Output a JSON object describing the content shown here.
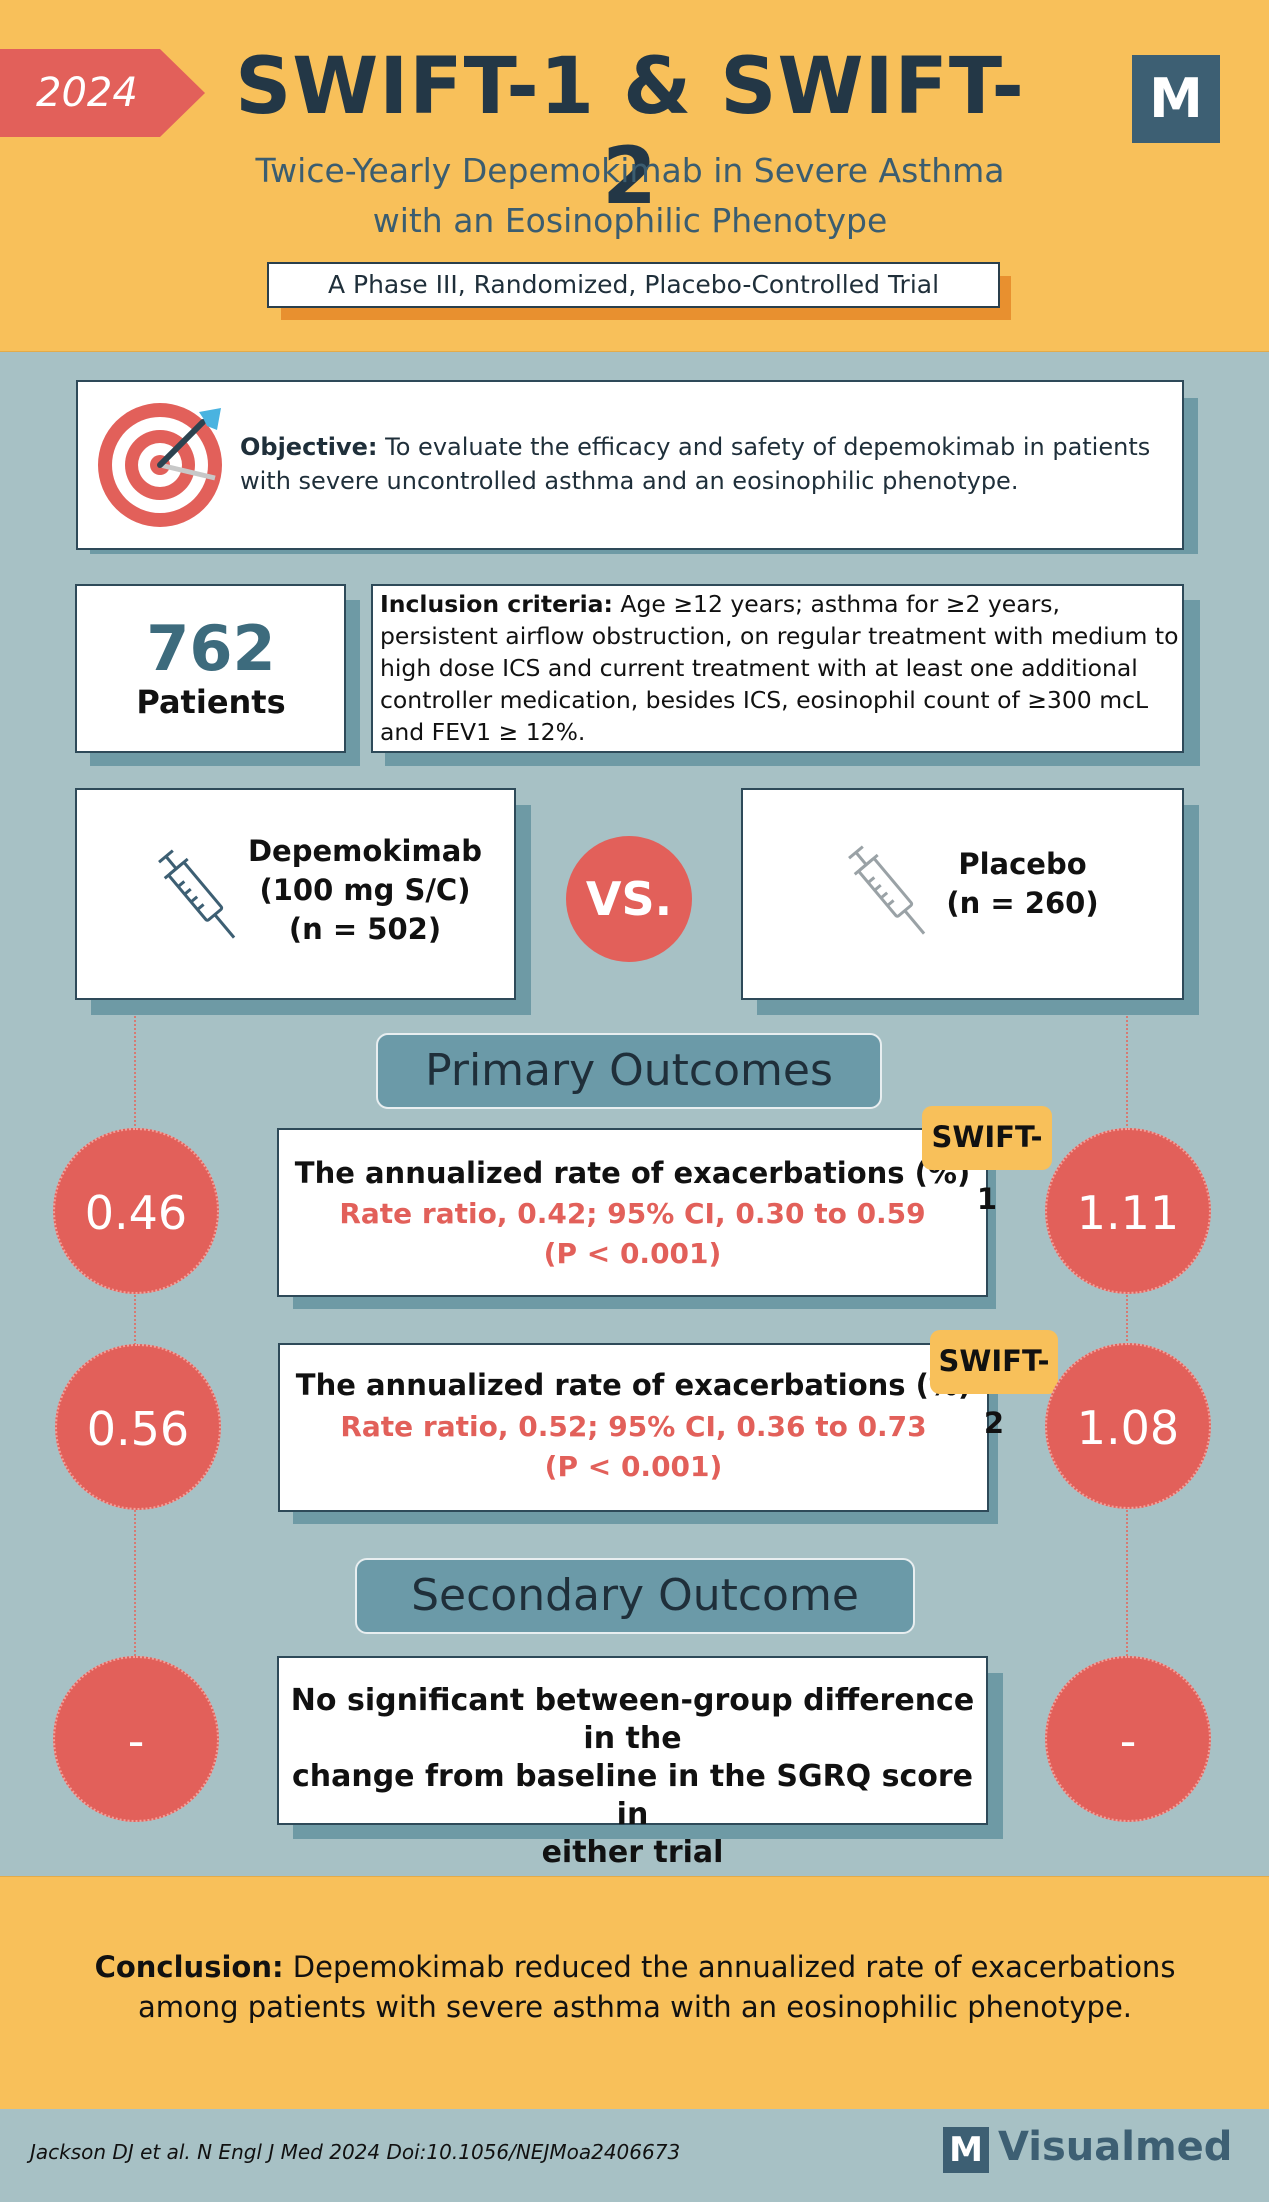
{
  "header": {
    "year": "2024",
    "title": "SWIFT-1 & SWIFT-2",
    "subtitle_line1": "Twice-Yearly Depemokimab in Severe Asthma",
    "subtitle_line2": "with an Eosinophilic Phenotype",
    "trial_type": "A Phase III, Randomized, Placebo-Controlled Trial",
    "logo_letter": "M"
  },
  "objective": {
    "label": "Objective:",
    "text": " To evaluate the efficacy and safety of depemokimab in patients with severe uncontrolled asthma and an eosinophilic phenotype.",
    "icon": "target-icon"
  },
  "patients": {
    "count": "762",
    "label": "Patients"
  },
  "inclusion": {
    "label": "Inclusion criteria:",
    "text": " Age ≥12 years; asthma for ≥2 years, persistent airflow obstruction, on  regular treatment with medium to high dose ICS and current treatment with at least one additional controller medication, besides ICS, eosinophil count of ≥300 mcL and FEV1 ≥ 12%."
  },
  "arms": {
    "treatment": {
      "line1": "Depemokimab",
      "line2": "(100 mg S/C)",
      "line3": "(n = 502)",
      "icon": "syringe-icon"
    },
    "vs_label": "VS.",
    "placebo": {
      "line1": "Placebo",
      "line2": "(n = 260)",
      "icon": "syringe-icon"
    }
  },
  "primary": {
    "heading": "Primary Outcomes",
    "swift1": {
      "tag": "SWIFT-1",
      "title": "The annualized rate of exacerbations (%)",
      "stat1": "Rate ratio, 0.42; 95% CI, 0.30 to 0.59",
      "stat2": "(P < 0.001)",
      "treatment_value": "0.46",
      "placebo_value": "1.11"
    },
    "swift2": {
      "tag": "SWIFT-2",
      "title": "The annualized rate of exacerbations (%)",
      "stat1": "Rate ratio, 0.52; 95% CI, 0.36 to 0.73",
      "stat2": "(P < 0.001)",
      "treatment_value": "0.56",
      "placebo_value": "1.08"
    }
  },
  "secondary": {
    "heading": "Secondary Outcome",
    "line1": "No significant between-group difference in the",
    "line2": "change from baseline in the SGRQ score in",
    "line3": "either trial",
    "treatment_value": "-",
    "placebo_value": "-"
  },
  "conclusion": {
    "label": "Conclusion:",
    "text": " Depemokimab reduced the annualized rate of exacerbations among patients with severe asthma with an eosinophilic phenotype."
  },
  "footer": {
    "citation": "Jackson DJ et al. N Engl J Med 2024 Doi:10.1056/NEJMoa2406673",
    "brand_logo": "M",
    "brand_name": "Visualmed"
  },
  "colors": {
    "header_bg": "#f8c05a",
    "body_bg": "#a7c1c5",
    "accent_red": "#e2605a",
    "dark_navy": "#233746",
    "teal": "#6b9aa8"
  }
}
